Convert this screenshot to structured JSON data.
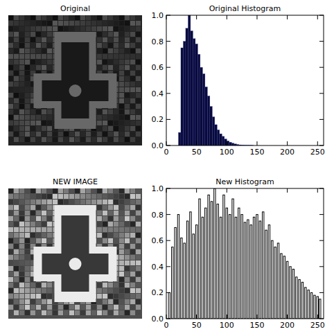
{
  "chart_data": [
    {
      "type": "image",
      "title": "Original"
    },
    {
      "type": "histogram",
      "title": "Original Histogram",
      "color": "#0a0a3a",
      "bins": [
        0,
        4,
        8,
        12,
        16,
        20,
        24,
        28,
        32,
        36,
        40,
        44,
        48,
        52,
        56,
        60,
        64,
        68,
        72,
        76,
        80,
        84,
        88,
        92,
        96,
        100,
        104,
        108,
        112,
        116,
        120,
        124,
        128,
        132,
        136,
        140,
        144,
        148,
        152,
        156,
        160,
        164,
        168,
        172,
        176,
        180,
        184,
        188,
        192,
        196,
        200,
        204,
        208,
        212,
        216,
        220,
        224,
        228,
        232,
        236,
        240,
        244,
        248,
        252,
        256
      ],
      "values": [
        0,
        0,
        0,
        0,
        0,
        0.1,
        0.75,
        0.8,
        0.9,
        1.0,
        0.88,
        0.82,
        0.78,
        0.7,
        0.6,
        0.55,
        0.45,
        0.38,
        0.3,
        0.22,
        0.16,
        0.12,
        0.09,
        0.07,
        0.05,
        0.035,
        0.025,
        0.018,
        0.012,
        0.008,
        0.005,
        0.004,
        0.003,
        0.002,
        0.002,
        0.001,
        0,
        0,
        0,
        0,
        0,
        0,
        0,
        0,
        0,
        0,
        0,
        0,
        0,
        0,
        0,
        0,
        0,
        0,
        0,
        0,
        0,
        0,
        0,
        0,
        0,
        0,
        0,
        0
      ],
      "xlim": [
        0,
        260
      ],
      "xticks": [
        0,
        50,
        100,
        150,
        200,
        250
      ],
      "ylim": [
        0,
        1
      ],
      "yticks": [
        {
          "value": 0,
          "label": "0.0"
        },
        0.2,
        0.4,
        0.6,
        0.8,
        {
          "value": 1,
          "label": "1.0"
        }
      ]
    },
    {
      "type": "image",
      "title": "NEW IMAGE"
    },
    {
      "type": "bar",
      "title": "New Histogram",
      "color": "#000000",
      "x": [
        5,
        10,
        15,
        20,
        25,
        30,
        35,
        40,
        45,
        50,
        55,
        60,
        65,
        70,
        75,
        80,
        85,
        90,
        95,
        100,
        105,
        110,
        115,
        120,
        125,
        130,
        135,
        140,
        145,
        150,
        155,
        160,
        165,
        170,
        175,
        180,
        185,
        190,
        195,
        200,
        205,
        210,
        215,
        220,
        225,
        230,
        235,
        240,
        245,
        250,
        254
      ],
      "values": [
        0.2,
        0.55,
        0.7,
        0.8,
        0.62,
        0.58,
        0.75,
        0.82,
        0.65,
        0.72,
        0.92,
        0.78,
        0.85,
        0.95,
        0.9,
        1.0,
        0.88,
        0.78,
        0.95,
        0.85,
        0.8,
        0.92,
        0.78,
        0.85,
        0.8,
        0.74,
        0.76,
        0.72,
        0.78,
        0.8,
        0.75,
        0.82,
        0.68,
        0.72,
        0.6,
        0.55,
        0.58,
        0.5,
        0.48,
        0.44,
        0.4,
        0.38,
        0.32,
        0.3,
        0.28,
        0.24,
        0.22,
        0.2,
        0.18,
        0.17,
        0.15
      ],
      "xlim": [
        0,
        260
      ],
      "xticks": [
        0,
        50,
        100,
        150,
        200,
        250
      ],
      "ylim": [
        0,
        1
      ],
      "yticks": [
        {
          "value": 0,
          "label": "0.0"
        },
        0.2,
        0.4,
        0.6,
        0.8,
        {
          "value": 1,
          "label": "1.0"
        }
      ]
    }
  ]
}
